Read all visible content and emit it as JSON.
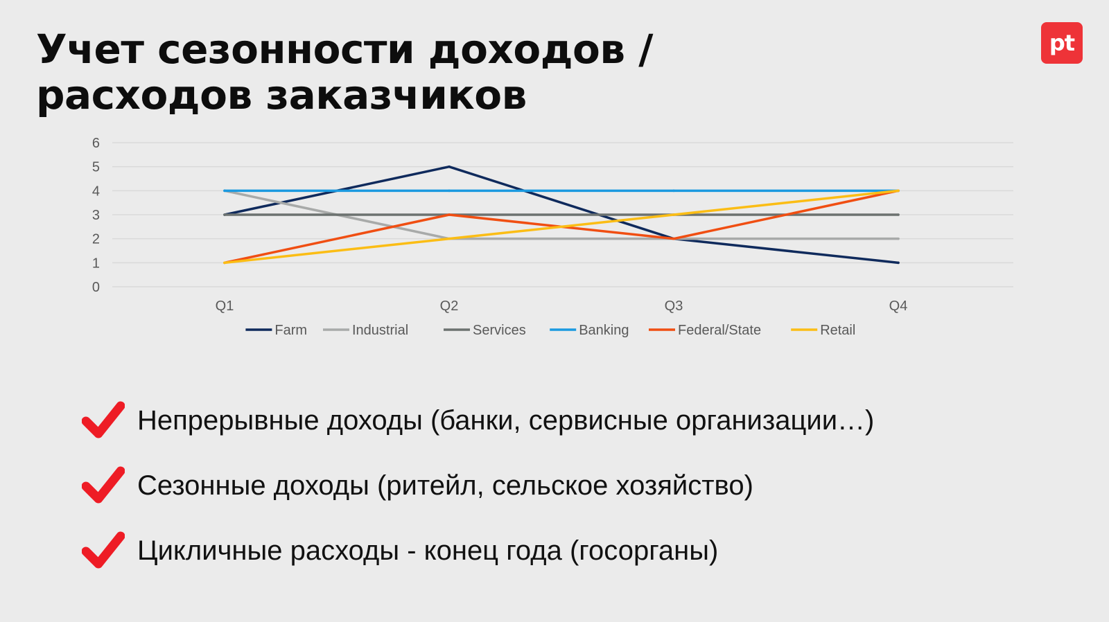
{
  "header": {
    "title_line1": "Учет сезонности доходов /",
    "title_line2": "расходов заказчиков",
    "logo_text": "pt",
    "logo_color": "#ee3338"
  },
  "chart_data": {
    "type": "line",
    "categories": [
      "Q1",
      "Q2",
      "Q3",
      "Q4"
    ],
    "ylim": [
      0,
      6
    ],
    "yticks": [
      0,
      1,
      2,
      3,
      4,
      5,
      6
    ],
    "grid": true,
    "legend_position": "bottom",
    "series": [
      {
        "name": "Farm",
        "color": "#0f2a5c",
        "values": [
          3,
          5,
          2,
          1
        ]
      },
      {
        "name": "Industrial",
        "color": "#a8aaa9",
        "values": [
          4,
          2,
          2,
          2
        ]
      },
      {
        "name": "Services",
        "color": "#6c7270",
        "values": [
          3,
          3,
          3,
          3
        ]
      },
      {
        "name": "Banking",
        "color": "#1b9ae0",
        "values": [
          4,
          4,
          4,
          4
        ]
      },
      {
        "name": "Federal/State",
        "color": "#f04e12",
        "values": [
          1,
          3,
          2,
          4
        ]
      },
      {
        "name": "Retail",
        "color": "#fbbd15",
        "values": [
          1,
          2,
          3,
          4
        ]
      }
    ]
  },
  "bullets": {
    "icon": "checkmark-icon",
    "icon_color": "#ee1c25",
    "items": [
      "Непрерывные доходы (банки, сервисные организации…)",
      "Сезонные доходы (ритейл, сельское хозяйство)",
      "Цикличные расходы - конец года (госорганы)"
    ]
  }
}
